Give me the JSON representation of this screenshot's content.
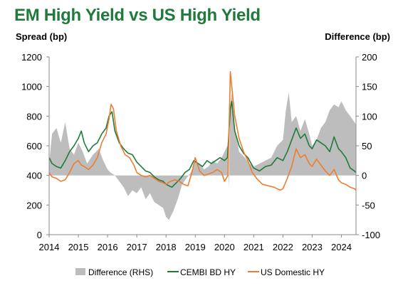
{
  "chart_data": {
    "type": "line",
    "title": "EM High Yield vs US High Yield",
    "ylabel_left": "Spread (bp)",
    "ylabel_right": "Difference (bp)",
    "x_ticks": [
      "2014",
      "2015",
      "2016",
      "2017",
      "2018",
      "2019",
      "2020",
      "2021",
      "2022",
      "2023",
      "2024"
    ],
    "xlim": [
      2014.0,
      2024.5
    ],
    "y_left_ticks": [
      "0",
      "200",
      "400",
      "600",
      "800",
      "1000",
      "1200"
    ],
    "ylim_left": [
      0,
      1200
    ],
    "y_right_ticks": [
      "-100",
      "-50",
      "0",
      "50",
      "100",
      "150",
      "200"
    ],
    "ylim_right": [
      -100,
      200
    ],
    "legend_position": "bottom",
    "series": [
      {
        "name": "Difference (RHS)",
        "axis": "right",
        "kind": "area",
        "color": "#bdbdbd",
        "points": [
          [
            2014.0,
            20
          ],
          [
            2014.1,
            70
          ],
          [
            2014.25,
            80
          ],
          [
            2014.4,
            55
          ],
          [
            2014.55,
            90
          ],
          [
            2014.7,
            45
          ],
          [
            2014.85,
            35
          ],
          [
            2015.0,
            55
          ],
          [
            2015.15,
            40
          ],
          [
            2015.3,
            20
          ],
          [
            2015.5,
            35
          ],
          [
            2015.7,
            45
          ],
          [
            2015.85,
            25
          ],
          [
            2016.0,
            10
          ],
          [
            2016.1,
            5
          ],
          [
            2016.25,
            0
          ],
          [
            2016.4,
            -10
          ],
          [
            2016.55,
            -20
          ],
          [
            2016.7,
            -35
          ],
          [
            2016.85,
            -25
          ],
          [
            2017.0,
            -30
          ],
          [
            2017.15,
            -20
          ],
          [
            2017.3,
            -40
          ],
          [
            2017.45,
            -30
          ],
          [
            2017.6,
            -45
          ],
          [
            2017.75,
            -50
          ],
          [
            2017.9,
            -55
          ],
          [
            2018.0,
            -70
          ],
          [
            2018.1,
            -75
          ],
          [
            2018.25,
            -60
          ],
          [
            2018.4,
            -40
          ],
          [
            2018.55,
            -15
          ],
          [
            2018.7,
            -5
          ],
          [
            2018.85,
            5
          ],
          [
            2019.0,
            25
          ],
          [
            2019.15,
            20
          ],
          [
            2019.3,
            10
          ],
          [
            2019.45,
            15
          ],
          [
            2019.6,
            25
          ],
          [
            2019.75,
            20
          ],
          [
            2019.9,
            30
          ],
          [
            2020.0,
            40
          ],
          [
            2020.1,
            50
          ],
          [
            2020.15,
            -20
          ],
          [
            2020.2,
            120
          ],
          [
            2020.25,
            140
          ],
          [
            2020.35,
            80
          ],
          [
            2020.5,
            40
          ],
          [
            2020.7,
            30
          ],
          [
            2020.85,
            20
          ],
          [
            2021.0,
            15
          ],
          [
            2021.2,
            20
          ],
          [
            2021.4,
            25
          ],
          [
            2021.6,
            30
          ],
          [
            2021.8,
            50
          ],
          [
            2022.0,
            60
          ],
          [
            2022.1,
            110
          ],
          [
            2022.2,
            140
          ],
          [
            2022.3,
            90
          ],
          [
            2022.45,
            100
          ],
          [
            2022.6,
            75
          ],
          [
            2022.75,
            95
          ],
          [
            2022.9,
            70
          ],
          [
            2023.0,
            50
          ],
          [
            2023.15,
            60
          ],
          [
            2023.3,
            80
          ],
          [
            2023.45,
            90
          ],
          [
            2023.6,
            110
          ],
          [
            2023.75,
            120
          ],
          [
            2023.9,
            115
          ],
          [
            2024.0,
            125
          ],
          [
            2024.15,
            110
          ],
          [
            2024.3,
            100
          ],
          [
            2024.45,
            90
          ],
          [
            2024.5,
            85
          ]
        ]
      },
      {
        "name": "CEMBI BD HY",
        "axis": "left",
        "kind": "line",
        "color": "#1f7a3c",
        "points": [
          [
            2014.0,
            520
          ],
          [
            2014.1,
            480
          ],
          [
            2014.25,
            460
          ],
          [
            2014.4,
            450
          ],
          [
            2014.55,
            500
          ],
          [
            2014.7,
            560
          ],
          [
            2014.85,
            600
          ],
          [
            2015.0,
            650
          ],
          [
            2015.1,
            700
          ],
          [
            2015.2,
            620
          ],
          [
            2015.35,
            560
          ],
          [
            2015.5,
            600
          ],
          [
            2015.65,
            620
          ],
          [
            2015.8,
            680
          ],
          [
            2015.95,
            720
          ],
          [
            2016.05,
            800
          ],
          [
            2016.15,
            830
          ],
          [
            2016.25,
            700
          ],
          [
            2016.4,
            620
          ],
          [
            2016.55,
            580
          ],
          [
            2016.7,
            550
          ],
          [
            2016.85,
            540
          ],
          [
            2017.0,
            490
          ],
          [
            2017.15,
            460
          ],
          [
            2017.3,
            430
          ],
          [
            2017.45,
            420
          ],
          [
            2017.6,
            390
          ],
          [
            2017.75,
            370
          ],
          [
            2017.9,
            360
          ],
          [
            2018.0,
            340
          ],
          [
            2018.1,
            330
          ],
          [
            2018.2,
            320
          ],
          [
            2018.35,
            350
          ],
          [
            2018.5,
            380
          ],
          [
            2018.65,
            420
          ],
          [
            2018.8,
            440
          ],
          [
            2018.95,
            500
          ],
          [
            2019.1,
            480
          ],
          [
            2019.25,
            460
          ],
          [
            2019.4,
            500
          ],
          [
            2019.55,
            480
          ],
          [
            2019.7,
            500
          ],
          [
            2019.85,
            520
          ],
          [
            2020.0,
            500
          ],
          [
            2020.1,
            520
          ],
          [
            2020.2,
            850
          ],
          [
            2020.25,
            900
          ],
          [
            2020.35,
            700
          ],
          [
            2020.5,
            600
          ],
          [
            2020.65,
            550
          ],
          [
            2020.8,
            520
          ],
          [
            2021.0,
            450
          ],
          [
            2021.2,
            430
          ],
          [
            2021.4,
            460
          ],
          [
            2021.6,
            470
          ],
          [
            2021.8,
            520
          ],
          [
            2022.0,
            500
          ],
          [
            2022.15,
            560
          ],
          [
            2022.3,
            640
          ],
          [
            2022.45,
            720
          ],
          [
            2022.6,
            650
          ],
          [
            2022.75,
            680
          ],
          [
            2022.9,
            600
          ],
          [
            2023.0,
            580
          ],
          [
            2023.15,
            640
          ],
          [
            2023.3,
            620
          ],
          [
            2023.45,
            600
          ],
          [
            2023.6,
            560
          ],
          [
            2023.75,
            660
          ],
          [
            2023.9,
            580
          ],
          [
            2024.0,
            560
          ],
          [
            2024.15,
            520
          ],
          [
            2024.3,
            450
          ],
          [
            2024.45,
            430
          ],
          [
            2024.5,
            420
          ]
        ]
      },
      {
        "name": "US Domestic HY",
        "axis": "left",
        "kind": "line",
        "color": "#ed7d31",
        "points": [
          [
            2014.0,
            420
          ],
          [
            2014.1,
            390
          ],
          [
            2014.25,
            380
          ],
          [
            2014.4,
            360
          ],
          [
            2014.55,
            370
          ],
          [
            2014.7,
            420
          ],
          [
            2014.85,
            480
          ],
          [
            2015.0,
            500
          ],
          [
            2015.1,
            470
          ],
          [
            2015.2,
            460
          ],
          [
            2015.35,
            440
          ],
          [
            2015.5,
            470
          ],
          [
            2015.65,
            520
          ],
          [
            2015.8,
            620
          ],
          [
            2015.95,
            680
          ],
          [
            2016.05,
            780
          ],
          [
            2016.12,
            880
          ],
          [
            2016.2,
            850
          ],
          [
            2016.3,
            700
          ],
          [
            2016.45,
            600
          ],
          [
            2016.6,
            540
          ],
          [
            2016.75,
            520
          ],
          [
            2016.9,
            470
          ],
          [
            2017.0,
            420
          ],
          [
            2017.15,
            400
          ],
          [
            2017.3,
            390
          ],
          [
            2017.45,
            400
          ],
          [
            2017.6,
            380
          ],
          [
            2017.75,
            360
          ],
          [
            2017.9,
            350
          ],
          [
            2018.0,
            340
          ],
          [
            2018.15,
            360
          ],
          [
            2018.3,
            370
          ],
          [
            2018.45,
            360
          ],
          [
            2018.6,
            340
          ],
          [
            2018.75,
            330
          ],
          [
            2018.9,
            430
          ],
          [
            2019.0,
            520
          ],
          [
            2019.15,
            430
          ],
          [
            2019.3,
            400
          ],
          [
            2019.45,
            410
          ],
          [
            2019.6,
            420
          ],
          [
            2019.75,
            440
          ],
          [
            2019.9,
            420
          ],
          [
            2020.0,
            360
          ],
          [
            2020.12,
            400
          ],
          [
            2020.2,
            1100
          ],
          [
            2020.25,
            1000
          ],
          [
            2020.35,
            800
          ],
          [
            2020.5,
            650
          ],
          [
            2020.65,
            560
          ],
          [
            2020.8,
            500
          ],
          [
            2020.95,
            420
          ],
          [
            2021.1,
            380
          ],
          [
            2021.3,
            340
          ],
          [
            2021.5,
            330
          ],
          [
            2021.7,
            320
          ],
          [
            2021.9,
            300
          ],
          [
            2022.0,
            310
          ],
          [
            2022.15,
            380
          ],
          [
            2022.3,
            460
          ],
          [
            2022.45,
            580
          ],
          [
            2022.6,
            520
          ],
          [
            2022.75,
            540
          ],
          [
            2022.9,
            480
          ],
          [
            2023.0,
            460
          ],
          [
            2023.15,
            510
          ],
          [
            2023.3,
            470
          ],
          [
            2023.45,
            430
          ],
          [
            2023.6,
            400
          ],
          [
            2023.75,
            440
          ],
          [
            2023.9,
            370
          ],
          [
            2024.0,
            350
          ],
          [
            2024.15,
            340
          ],
          [
            2024.3,
            320
          ],
          [
            2024.45,
            310
          ],
          [
            2024.5,
            300
          ]
        ]
      }
    ]
  }
}
